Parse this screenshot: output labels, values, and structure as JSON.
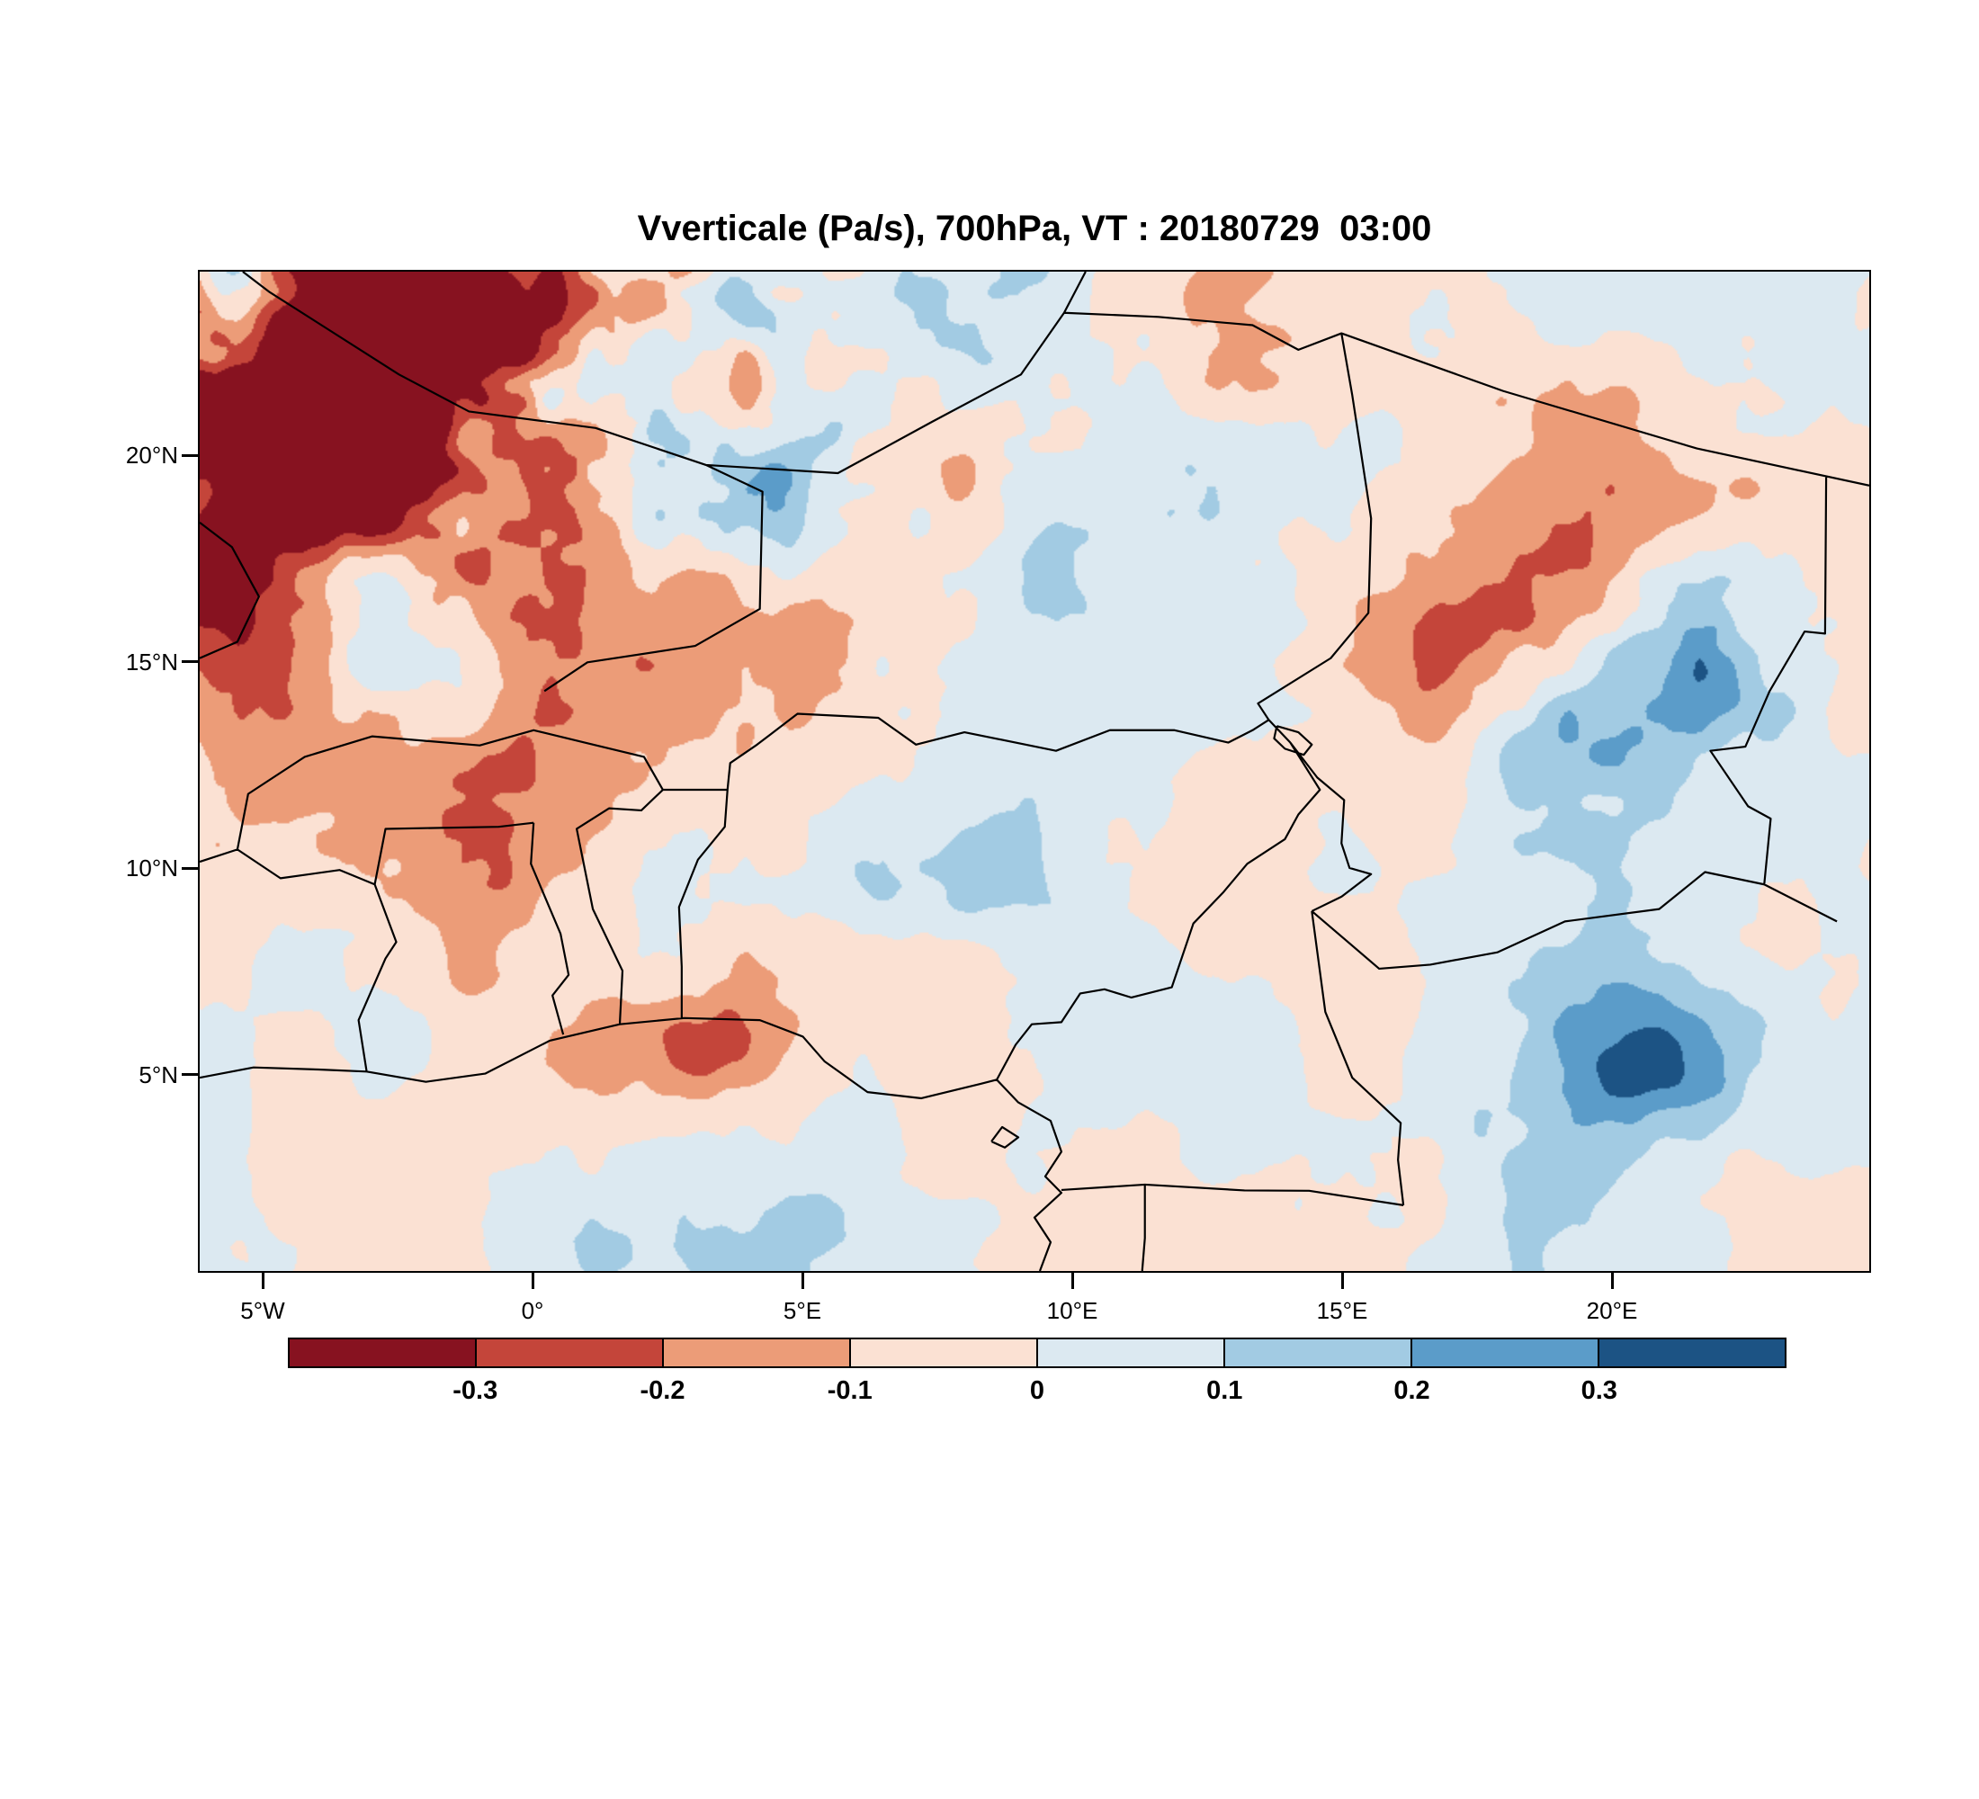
{
  "figure": {
    "background": "#ffffff",
    "frame_color": "#000000"
  },
  "chart_data": {
    "type": "heatmap",
    "subtype": "filled-contour-geographic-map",
    "title": "Vverticale (Pa/s), 700hPa, VT : 20180729  03:00",
    "variable": "Vverticale",
    "units": "Pa/s",
    "pressure_level": "700hPa",
    "valid_time_label": "VT : 20180729  03:00",
    "lon_range_deg": [
      -6.2,
      24.8
    ],
    "lat_range_deg": [
      0.2,
      24.5
    ],
    "grid": false,
    "overlay": "country-borders",
    "x_axis": {
      "ticks": [
        {
          "label": "5°W",
          "lon": -5
        },
        {
          "label": "0°",
          "lon": 0
        },
        {
          "label": "5°E",
          "lon": 5
        },
        {
          "label": "10°E",
          "lon": 10
        },
        {
          "label": "15°E",
          "lon": 15
        },
        {
          "label": "20°E",
          "lon": 20
        }
      ]
    },
    "y_axis": {
      "ticks": [
        {
          "label": "5°N",
          "lat": 5
        },
        {
          "label": "10°N",
          "lat": 10
        },
        {
          "label": "15°N",
          "lat": 15
        },
        {
          "label": "20°N",
          "lat": 20
        }
      ]
    },
    "colorbar": {
      "orientation": "horizontal",
      "levels": [
        -0.3,
        -0.2,
        -0.1,
        0,
        0.1,
        0.2,
        0.3
      ],
      "labels": [
        "-0.3",
        "-0.2",
        "-0.1",
        "0",
        "0.1",
        "0.2",
        "0.3"
      ],
      "colors": [
        "#871220",
        "#c4453a",
        "#ec9c78",
        "#fbe1d3",
        "#dce9f1",
        "#a2cbe3",
        "#5b9cc9",
        "#1c5384"
      ]
    }
  }
}
